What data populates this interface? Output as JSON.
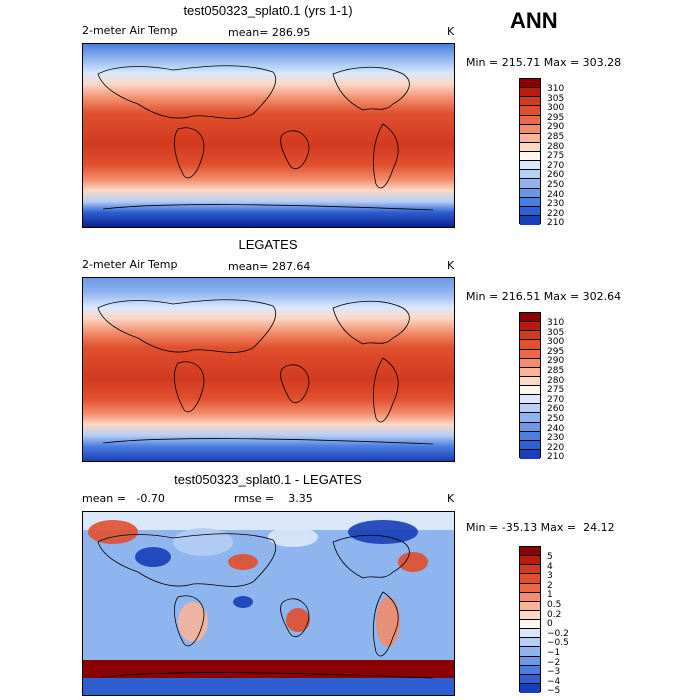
{
  "season": "ANN",
  "panels": [
    {
      "title": "test050323_splat0.1 (yrs 1-1)",
      "variable": "2-meter Air Temp",
      "stat1": "mean=  286.95",
      "stat2": "",
      "units": "K",
      "minmax": "Min = 215.71 Max = 303.28",
      "type": "field",
      "colors": [
        "#8b0000",
        "#b71c0c",
        "#d23a1e",
        "#e0502e",
        "#ea6a47",
        "#f28c6b",
        "#f9b49a",
        "#fcd8c6",
        "#fff6ee",
        "#dbe8fb",
        "#b5cff5",
        "#8fb5ef",
        "#6b99e8",
        "#4a7ee0",
        "#2d5fd3",
        "#183fb7",
        "#0a218f",
        "#040c63"
      ],
      "ticks": [
        "310",
        "305",
        "300",
        "295",
        "290",
        "285",
        "280",
        "275",
        "270",
        "260",
        "250",
        "240",
        "230",
        "220",
        "210"
      ]
    },
    {
      "title": "LEGATES",
      "variable": "2-meter Air Temp",
      "stat1": "mean=  287.64",
      "stat2": "",
      "units": "K",
      "minmax": "Min = 216.51 Max = 302.64",
      "type": "field",
      "colors": [
        "#8b0000",
        "#b71c0c",
        "#d23a1e",
        "#e0502e",
        "#ea6a47",
        "#f28c6b",
        "#f9b49a",
        "#fcd8c6",
        "#fff6ee",
        "#dbe8fb",
        "#b5cff5",
        "#8fb5ef",
        "#6b99e8",
        "#4a7ee0",
        "#2d5fd3",
        "#183fb7",
        "#0a218f",
        "#040c63"
      ],
      "ticks": [
        "310",
        "305",
        "300",
        "295",
        "290",
        "285",
        "280",
        "275",
        "270",
        "260",
        "250",
        "240",
        "230",
        "220",
        "210"
      ]
    },
    {
      "title": "test050323_splat0.1 - LEGATES",
      "variable": "mean =   -0.70",
      "stat1": "",
      "stat2": "rmse =    3.35",
      "units": "K",
      "minmax": "Min = -35.13 Max =  24.12",
      "type": "diff",
      "colors": [
        "#8b0000",
        "#b71c0c",
        "#d23a1e",
        "#e0502e",
        "#ea6a47",
        "#f28c6b",
        "#f9b49a",
        "#fcd8c6",
        "#fff6ee",
        "#dbe8fb",
        "#b5cff5",
        "#8fb5ef",
        "#6b99e8",
        "#4a7ee0",
        "#2d5fd3",
        "#183fb7",
        "#0a218f",
        "#040c63"
      ],
      "ticks": [
        "5",
        "4",
        "3",
        "2",
        "1",
        "0.5",
        "0.2",
        "0",
        "−0.2",
        "−0.5",
        "−1",
        "−2",
        "−3",
        "−4",
        "−5"
      ]
    }
  ]
}
